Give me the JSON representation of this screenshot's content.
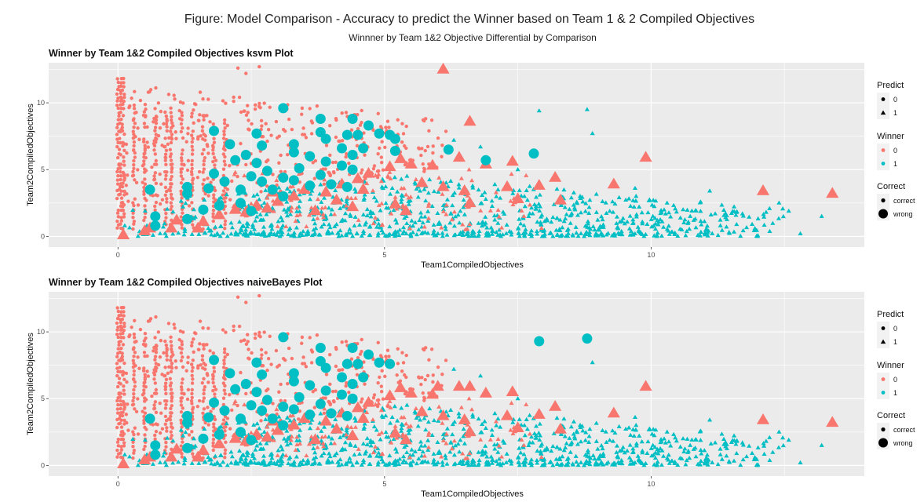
{
  "figure": {
    "title": "Figure: Model Comparison - Accuracy to predict the Winner based on Team 1 & 2 Compiled Objectives",
    "subtitle": "Winnner by Team 1&2 Objective Differential by Comparison"
  },
  "colors": {
    "winner_0": "#F8766D",
    "winner_1": "#00BFC4",
    "panel_bg": "#EBEBEB",
    "grid": "#FFFFFF",
    "legend_key_bg": "#F2F2F2"
  },
  "legend": {
    "predict": {
      "title": "Predict",
      "labels": [
        "0",
        "1"
      ]
    },
    "winner": {
      "title": "Winner",
      "labels": [
        "0",
        "1"
      ]
    },
    "correct": {
      "title": "Correct",
      "labels": [
        "correct",
        "wrong"
      ]
    }
  },
  "chart_data": [
    {
      "type": "scatter",
      "title": "Winner by Team 1&2 Compiled Objectives ksvm Plot",
      "xlabel": "Team1CompiledObjectives",
      "ylabel": "Team2CompiledObjectives",
      "xlim": [
        -1.3,
        14.0
      ],
      "ylim": [
        -0.8,
        13.0
      ],
      "xticks": [
        0,
        5,
        10
      ],
      "yticks": [
        0,
        5,
        10
      ],
      "grid": true,
      "legend_position": "right",
      "wrong_points": [
        {
          "x": 6.1,
          "y": 12.5,
          "w": 0
        },
        {
          "x": 6.6,
          "y": 8.6,
          "w": 0
        },
        {
          "x": 9.9,
          "y": 5.9,
          "w": 0
        },
        {
          "x": 7.4,
          "y": 5.6,
          "w": 0
        },
        {
          "x": 6.9,
          "y": 5.4,
          "w": 0
        },
        {
          "x": 6.4,
          "y": 5.9,
          "w": 0
        },
        {
          "x": 5.5,
          "y": 5.4,
          "w": 0
        },
        {
          "x": 5.1,
          "y": 5.2,
          "w": 0
        },
        {
          "x": 5.3,
          "y": 5.8,
          "w": 0
        },
        {
          "x": 4.7,
          "y": 4.7,
          "w": 0
        },
        {
          "x": 4.5,
          "y": 4.3,
          "w": 0
        },
        {
          "x": 5.9,
          "y": 5.3,
          "w": 0
        },
        {
          "x": 7.9,
          "y": 3.8,
          "w": 0
        },
        {
          "x": 8.2,
          "y": 4.4,
          "w": 0
        },
        {
          "x": 7.3,
          "y": 3.7,
          "w": 0
        },
        {
          "x": 9.3,
          "y": 3.9,
          "w": 0
        },
        {
          "x": 12.1,
          "y": 3.4,
          "w": 0
        },
        {
          "x": 13.4,
          "y": 3.2,
          "w": 0
        },
        {
          "x": 7.5,
          "y": 2.8,
          "w": 0
        },
        {
          "x": 8.3,
          "y": 2.7,
          "w": 0
        },
        {
          "x": 6.6,
          "y": 2.5,
          "w": 0
        },
        {
          "x": 6.5,
          "y": 3.4,
          "w": 0
        },
        {
          "x": 6.1,
          "y": 3.7,
          "w": 0
        },
        {
          "x": 5.7,
          "y": 4.0,
          "w": 0
        },
        {
          "x": 4.6,
          "y": 3.5,
          "w": 0
        },
        {
          "x": 4.2,
          "y": 3.9,
          "w": 0
        },
        {
          "x": 3.9,
          "y": 3.3,
          "w": 0
        },
        {
          "x": 3.5,
          "y": 3.5,
          "w": 0
        },
        {
          "x": 3.3,
          "y": 3.0,
          "w": 0
        },
        {
          "x": 3.0,
          "y": 2.6,
          "w": 0
        },
        {
          "x": 2.9,
          "y": 3.3,
          "w": 0
        },
        {
          "x": 2.8,
          "y": 2.1,
          "w": 0
        },
        {
          "x": 2.6,
          "y": 2.3,
          "w": 0
        },
        {
          "x": 2.4,
          "y": 1.8,
          "w": 0
        },
        {
          "x": 2.2,
          "y": 2.0,
          "w": 0
        },
        {
          "x": 1.9,
          "y": 1.6,
          "w": 0
        },
        {
          "x": 1.6,
          "y": 1.1,
          "w": 0
        },
        {
          "x": 1.5,
          "y": 0.6,
          "w": 0
        },
        {
          "x": 1.1,
          "y": 1.2,
          "w": 0
        },
        {
          "x": 1.0,
          "y": 0.6,
          "w": 0
        },
        {
          "x": 0.6,
          "y": 0.6,
          "w": 0
        },
        {
          "x": 0.5,
          "y": 0.4,
          "w": 0
        },
        {
          "x": 0.1,
          "y": 0.1,
          "w": 0
        },
        {
          "x": 4.1,
          "y": 2.7,
          "w": 0
        },
        {
          "x": 4.4,
          "y": 2.2,
          "w": 0
        },
        {
          "x": 5.2,
          "y": 2.4,
          "w": 0
        },
        {
          "x": 5.4,
          "y": 1.9,
          "w": 0
        },
        {
          "x": 3.7,
          "y": 1.9,
          "w": 0
        },
        {
          "x": 3.1,
          "y": 9.6,
          "w": 1
        },
        {
          "x": 3.8,
          "y": 8.8,
          "w": 1
        },
        {
          "x": 4.4,
          "y": 8.8,
          "w": 1
        },
        {
          "x": 4.7,
          "y": 8.3,
          "w": 1
        },
        {
          "x": 1.8,
          "y": 7.9,
          "w": 1
        },
        {
          "x": 2.6,
          "y": 7.7,
          "w": 1
        },
        {
          "x": 3.8,
          "y": 7.8,
          "w": 1
        },
        {
          "x": 4.3,
          "y": 7.6,
          "w": 1
        },
        {
          "x": 4.5,
          "y": 7.6,
          "w": 1
        },
        {
          "x": 4.9,
          "y": 7.7,
          "w": 1
        },
        {
          "x": 5.1,
          "y": 7.6,
          "w": 1
        },
        {
          "x": 3.9,
          "y": 7.3,
          "w": 1
        },
        {
          "x": 5.2,
          "y": 7.3,
          "w": 1
        },
        {
          "x": 2.1,
          "y": 6.9,
          "w": 1
        },
        {
          "x": 2.7,
          "y": 6.8,
          "w": 1
        },
        {
          "x": 3.3,
          "y": 6.9,
          "w": 1
        },
        {
          "x": 4.2,
          "y": 6.6,
          "w": 1
        },
        {
          "x": 4.6,
          "y": 6.6,
          "w": 1
        },
        {
          "x": 5.2,
          "y": 6.4,
          "w": 1
        },
        {
          "x": 6.2,
          "y": 6.5,
          "w": 1
        },
        {
          "x": 3.3,
          "y": 6.3,
          "w": 1
        },
        {
          "x": 2.4,
          "y": 6.1,
          "w": 1
        },
        {
          "x": 3.6,
          "y": 6.0,
          "w": 1
        },
        {
          "x": 4.4,
          "y": 6.1,
          "w": 1
        },
        {
          "x": 7.8,
          "y": 6.2,
          "w": 1
        },
        {
          "x": 6.9,
          "y": 5.7,
          "w": 1
        },
        {
          "x": 2.2,
          "y": 5.7,
          "w": 1
        },
        {
          "x": 2.6,
          "y": 5.5,
          "w": 1
        },
        {
          "x": 3.9,
          "y": 5.6,
          "w": 1
        },
        {
          "x": 4.2,
          "y": 5.3,
          "w": 1
        },
        {
          "x": 3.4,
          "y": 5.1,
          "w": 1
        },
        {
          "x": 2.8,
          "y": 4.9,
          "w": 1
        },
        {
          "x": 4.4,
          "y": 5.0,
          "w": 1
        },
        {
          "x": 1.8,
          "y": 4.7,
          "w": 1
        },
        {
          "x": 2.5,
          "y": 4.5,
          "w": 1
        },
        {
          "x": 3.1,
          "y": 4.4,
          "w": 1
        },
        {
          "x": 3.8,
          "y": 4.6,
          "w": 1
        },
        {
          "x": 2.0,
          "y": 4.1,
          "w": 1
        },
        {
          "x": 2.7,
          "y": 4.1,
          "w": 1
        },
        {
          "x": 3.3,
          "y": 4.2,
          "w": 1
        },
        {
          "x": 3.6,
          "y": 3.8,
          "w": 1
        },
        {
          "x": 4.0,
          "y": 3.9,
          "w": 1
        },
        {
          "x": 4.3,
          "y": 3.7,
          "w": 1
        },
        {
          "x": 1.3,
          "y": 3.7,
          "w": 1
        },
        {
          "x": 1.7,
          "y": 3.6,
          "w": 1
        },
        {
          "x": 2.3,
          "y": 3.5,
          "w": 1
        },
        {
          "x": 2.9,
          "y": 3.5,
          "w": 1
        },
        {
          "x": 0.6,
          "y": 3.5,
          "w": 1
        },
        {
          "x": 1.3,
          "y": 3.2,
          "w": 1
        },
        {
          "x": 3.1,
          "y": 3.0,
          "w": 1
        },
        {
          "x": 1.9,
          "y": 2.3,
          "w": 1
        },
        {
          "x": 2.3,
          "y": 2.5,
          "w": 1
        },
        {
          "x": 1.6,
          "y": 2.0,
          "w": 1
        },
        {
          "x": 2.5,
          "y": 1.9,
          "w": 1
        },
        {
          "x": 0.7,
          "y": 1.5,
          "w": 1
        },
        {
          "x": 1.3,
          "y": 1.3,
          "w": 1
        },
        {
          "x": 0.7,
          "y": 0.8,
          "w": 1
        }
      ]
    },
    {
      "type": "scatter",
      "title": "Winner by Team 1&2 Compiled Objectives naiveBayes Plot",
      "xlabel": "Team1CompiledObjectives",
      "ylabel": "Team2CompiledObjectives",
      "xlim": [
        -1.3,
        14.0
      ],
      "ylim": [
        -0.8,
        13.0
      ],
      "xticks": [
        0,
        5,
        10
      ],
      "yticks": [
        0,
        5,
        10
      ],
      "grid": true,
      "legend_position": "right",
      "wrong_points": [
        {
          "x": 6.6,
          "y": 5.9,
          "w": 0
        },
        {
          "x": 9.9,
          "y": 5.9,
          "w": 0
        },
        {
          "x": 7.4,
          "y": 5.5,
          "w": 0
        },
        {
          "x": 6.9,
          "y": 5.4,
          "w": 0
        },
        {
          "x": 6.4,
          "y": 5.9,
          "w": 0
        },
        {
          "x": 6.0,
          "y": 5.9,
          "w": 0
        },
        {
          "x": 5.5,
          "y": 5.4,
          "w": 0
        },
        {
          "x": 5.1,
          "y": 5.2,
          "w": 0
        },
        {
          "x": 5.3,
          "y": 5.8,
          "w": 0
        },
        {
          "x": 4.7,
          "y": 4.7,
          "w": 0
        },
        {
          "x": 4.5,
          "y": 4.3,
          "w": 0
        },
        {
          "x": 5.9,
          "y": 5.3,
          "w": 0
        },
        {
          "x": 7.9,
          "y": 3.8,
          "w": 0
        },
        {
          "x": 8.2,
          "y": 4.4,
          "w": 0
        },
        {
          "x": 7.3,
          "y": 3.7,
          "w": 0
        },
        {
          "x": 9.3,
          "y": 3.9,
          "w": 0
        },
        {
          "x": 12.1,
          "y": 3.4,
          "w": 0
        },
        {
          "x": 13.4,
          "y": 3.2,
          "w": 0
        },
        {
          "x": 7.5,
          "y": 2.8,
          "w": 0
        },
        {
          "x": 8.3,
          "y": 2.7,
          "w": 0
        },
        {
          "x": 6.6,
          "y": 2.5,
          "w": 0
        },
        {
          "x": 6.5,
          "y": 3.4,
          "w": 0
        },
        {
          "x": 6.1,
          "y": 3.7,
          "w": 0
        },
        {
          "x": 5.7,
          "y": 4.0,
          "w": 0
        },
        {
          "x": 4.6,
          "y": 3.5,
          "w": 0
        },
        {
          "x": 4.2,
          "y": 3.9,
          "w": 0
        },
        {
          "x": 3.9,
          "y": 3.3,
          "w": 0
        },
        {
          "x": 3.5,
          "y": 3.5,
          "w": 0
        },
        {
          "x": 3.3,
          "y": 3.0,
          "w": 0
        },
        {
          "x": 3.0,
          "y": 2.6,
          "w": 0
        },
        {
          "x": 2.9,
          "y": 3.3,
          "w": 0
        },
        {
          "x": 2.8,
          "y": 2.1,
          "w": 0
        },
        {
          "x": 2.6,
          "y": 2.3,
          "w": 0
        },
        {
          "x": 2.4,
          "y": 1.8,
          "w": 0
        },
        {
          "x": 2.2,
          "y": 2.0,
          "w": 0
        },
        {
          "x": 1.9,
          "y": 1.6,
          "w": 0
        },
        {
          "x": 1.6,
          "y": 1.1,
          "w": 0
        },
        {
          "x": 1.5,
          "y": 0.6,
          "w": 0
        },
        {
          "x": 1.1,
          "y": 1.2,
          "w": 0
        },
        {
          "x": 1.0,
          "y": 0.6,
          "w": 0
        },
        {
          "x": 0.6,
          "y": 0.6,
          "w": 0
        },
        {
          "x": 0.5,
          "y": 0.4,
          "w": 0
        },
        {
          "x": 0.1,
          "y": 0.1,
          "w": 0
        },
        {
          "x": 4.1,
          "y": 2.7,
          "w": 0
        },
        {
          "x": 4.4,
          "y": 2.2,
          "w": 0
        },
        {
          "x": 5.2,
          "y": 2.4,
          "w": 0
        },
        {
          "x": 5.4,
          "y": 1.9,
          "w": 0
        },
        {
          "x": 3.7,
          "y": 1.9,
          "w": 0
        },
        {
          "x": 3.1,
          "y": 9.6,
          "w": 1
        },
        {
          "x": 3.8,
          "y": 8.8,
          "w": 1
        },
        {
          "x": 4.4,
          "y": 8.8,
          "w": 1
        },
        {
          "x": 4.7,
          "y": 8.3,
          "w": 1
        },
        {
          "x": 7.9,
          "y": 9.3,
          "w": 1
        },
        {
          "x": 8.8,
          "y": 9.5,
          "w": 1
        },
        {
          "x": 1.8,
          "y": 7.9,
          "w": 1
        },
        {
          "x": 2.6,
          "y": 7.7,
          "w": 1
        },
        {
          "x": 3.8,
          "y": 7.8,
          "w": 1
        },
        {
          "x": 4.3,
          "y": 7.6,
          "w": 1
        },
        {
          "x": 4.5,
          "y": 7.6,
          "w": 1
        },
        {
          "x": 4.9,
          "y": 7.7,
          "w": 1
        },
        {
          "x": 5.1,
          "y": 7.6,
          "w": 1
        },
        {
          "x": 3.9,
          "y": 7.3,
          "w": 1
        },
        {
          "x": 2.1,
          "y": 6.9,
          "w": 1
        },
        {
          "x": 2.7,
          "y": 6.8,
          "w": 1
        },
        {
          "x": 3.3,
          "y": 6.9,
          "w": 1
        },
        {
          "x": 4.2,
          "y": 6.6,
          "w": 1
        },
        {
          "x": 4.6,
          "y": 6.6,
          "w": 1
        },
        {
          "x": 3.3,
          "y": 6.3,
          "w": 1
        },
        {
          "x": 2.4,
          "y": 6.1,
          "w": 1
        },
        {
          "x": 3.6,
          "y": 6.0,
          "w": 1
        },
        {
          "x": 4.4,
          "y": 6.1,
          "w": 1
        },
        {
          "x": 2.2,
          "y": 5.7,
          "w": 1
        },
        {
          "x": 2.6,
          "y": 5.5,
          "w": 1
        },
        {
          "x": 3.9,
          "y": 5.6,
          "w": 1
        },
        {
          "x": 4.2,
          "y": 5.3,
          "w": 1
        },
        {
          "x": 3.4,
          "y": 5.1,
          "w": 1
        },
        {
          "x": 2.8,
          "y": 4.9,
          "w": 1
        },
        {
          "x": 4.4,
          "y": 5.0,
          "w": 1
        },
        {
          "x": 1.8,
          "y": 4.7,
          "w": 1
        },
        {
          "x": 2.5,
          "y": 4.5,
          "w": 1
        },
        {
          "x": 3.1,
          "y": 4.4,
          "w": 1
        },
        {
          "x": 3.8,
          "y": 4.6,
          "w": 1
        },
        {
          "x": 2.0,
          "y": 4.1,
          "w": 1
        },
        {
          "x": 2.7,
          "y": 4.1,
          "w": 1
        },
        {
          "x": 3.3,
          "y": 4.2,
          "w": 1
        },
        {
          "x": 3.6,
          "y": 3.8,
          "w": 1
        },
        {
          "x": 4.0,
          "y": 3.9,
          "w": 1
        },
        {
          "x": 4.3,
          "y": 3.7,
          "w": 1
        },
        {
          "x": 1.3,
          "y": 3.7,
          "w": 1
        },
        {
          "x": 1.7,
          "y": 3.6,
          "w": 1
        },
        {
          "x": 2.3,
          "y": 3.5,
          "w": 1
        },
        {
          "x": 2.9,
          "y": 3.5,
          "w": 1
        },
        {
          "x": 0.6,
          "y": 3.5,
          "w": 1
        },
        {
          "x": 1.3,
          "y": 3.2,
          "w": 1
        },
        {
          "x": 3.1,
          "y": 3.0,
          "w": 1
        },
        {
          "x": 1.9,
          "y": 2.3,
          "w": 1
        },
        {
          "x": 2.3,
          "y": 2.5,
          "w": 1
        },
        {
          "x": 1.6,
          "y": 2.0,
          "w": 1
        },
        {
          "x": 2.5,
          "y": 1.9,
          "w": 1
        },
        {
          "x": 0.7,
          "y": 1.5,
          "w": 1
        },
        {
          "x": 1.3,
          "y": 1.3,
          "w": 1
        },
        {
          "x": 0.7,
          "y": 0.8,
          "w": 1
        }
      ]
    }
  ]
}
